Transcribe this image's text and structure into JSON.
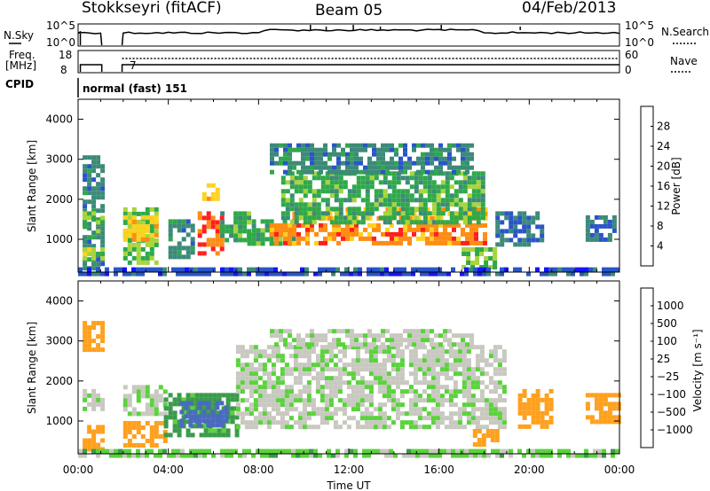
{
  "header": {
    "station": "Stokkseyri (fitACF)",
    "beam": "Beam 05",
    "date": "04/Feb/2013"
  },
  "nsky_panel": {
    "label": "N.Sky",
    "left_ticks": [
      "10^5",
      "10^0"
    ],
    "right_ticks": [
      "10^5",
      "10^0"
    ],
    "right_label": "N.Search"
  },
  "freq_panel": {
    "label_line1": "Freq.",
    "label_line2": "[MHz]",
    "left_ticks": [
      "18",
      "8"
    ],
    "right_ticks": [
      "60",
      "0"
    ],
    "right_label": "Nave",
    "marker": "7"
  },
  "cpid_panel": {
    "label": "CPID",
    "mode_text": "normal (fast) 151"
  },
  "time_axis": {
    "label": "Time UT",
    "tick_labels": [
      "00:00",
      "04:00",
      "08:00",
      "12:00",
      "16:00",
      "20:00",
      "00:00"
    ]
  },
  "colors": {
    "power_scale": [
      "#1414ff",
      "#2a55c8",
      "#3c8a78",
      "#2fa84a",
      "#a8d43c",
      "#ffd21e",
      "#ff8c14",
      "#ff1e1e"
    ],
    "velocity_scale": [
      "#1e28c8",
      "#4a6ac0",
      "#3a9a4a",
      "#5ad23c",
      "#c8c8c0",
      "#c8c8c0",
      "#ffa01e",
      "#ff7814",
      "#ff1e1e"
    ]
  },
  "chart_data": [
    {
      "type": "heatmap",
      "name": "power",
      "ylabel": "Slant Range [km]",
      "xlabel": "",
      "ylim": [
        180,
        4500
      ],
      "y_ticks": [
        "1000",
        "2000",
        "3000",
        "4000"
      ],
      "y_tick_values": [
        1000,
        2000,
        3000,
        4000
      ],
      "xlim_hours": [
        0,
        24
      ],
      "colorbar": {
        "label": "Power [dB]",
        "ticks": [
          "4",
          "8",
          "12",
          "16",
          "20",
          "24",
          "28"
        ],
        "tick_values": [
          4,
          8,
          12,
          16,
          20,
          24,
          28
        ],
        "range": [
          0,
          32
        ]
      },
      "regions": [
        {
          "t0": 0.2,
          "t1": 1.0,
          "r0": 300,
          "r1": 3100,
          "value": 10
        },
        {
          "t0": 0.2,
          "t1": 1.0,
          "r0": 500,
          "r1": 800,
          "value": 18
        },
        {
          "t0": 0.2,
          "t1": 1.0,
          "r0": 1200,
          "r1": 1700,
          "value": 16
        },
        {
          "t0": 2.0,
          "t1": 3.5,
          "r0": 400,
          "r1": 1800,
          "value": 16
        },
        {
          "t0": 2.0,
          "t1": 3.5,
          "r0": 1000,
          "r1": 1600,
          "value": 22
        },
        {
          "t0": 4.0,
          "t1": 5.0,
          "r0": 600,
          "r1": 1500,
          "value": 10
        },
        {
          "t0": 5.3,
          "t1": 6.3,
          "r0": 700,
          "r1": 1700,
          "value": 28
        },
        {
          "t0": 5.5,
          "t1": 6.2,
          "r0": 2000,
          "r1": 2400,
          "value": 22
        },
        {
          "t0": 6.3,
          "t1": 7.5,
          "r0": 1000,
          "r1": 1700,
          "value": 14
        },
        {
          "t0": 7.5,
          "t1": 9.5,
          "r0": 900,
          "r1": 1500,
          "value": 14
        },
        {
          "t0": 8.5,
          "t1": 18.0,
          "r0": 900,
          "r1": 1400,
          "value": 26
        },
        {
          "t0": 9.5,
          "t1": 18.0,
          "r0": 1500,
          "r1": 1800,
          "value": 24
        },
        {
          "t0": 9.0,
          "t1": 18.0,
          "r0": 1400,
          "r1": 2700,
          "value": 14
        },
        {
          "t0": 8.5,
          "t1": 17.5,
          "r0": 2700,
          "r1": 3400,
          "value": 10
        },
        {
          "t0": 17.0,
          "t1": 18.5,
          "r0": 300,
          "r1": 800,
          "value": 16
        },
        {
          "t0": 18.5,
          "t1": 20.5,
          "r0": 900,
          "r1": 1700,
          "value": 8
        },
        {
          "t0": 22.5,
          "t1": 23.8,
          "r0": 1000,
          "r1": 1600,
          "value": 8
        },
        {
          "t0": 0.0,
          "t1": 24.0,
          "r0": 180,
          "r1": 300,
          "value": 6
        }
      ]
    },
    {
      "type": "heatmap",
      "name": "velocity",
      "ylabel": "Slant Range [km]",
      "xlabel": "Time UT",
      "ylim": [
        180,
        4500
      ],
      "y_ticks": [
        "1000",
        "2000",
        "3000",
        "4000"
      ],
      "y_tick_values": [
        1000,
        2000,
        3000,
        4000
      ],
      "xlim_hours": [
        0,
        24
      ],
      "colorbar": {
        "label": "Velocity [m s⁻¹]",
        "ticks": [
          "1000",
          "500",
          "100",
          "25",
          "−25",
          "−100",
          "−500",
          "−1000"
        ],
        "tick_values": [
          1000,
          500,
          100,
          25,
          -25,
          -100,
          -500,
          -1000
        ]
      },
      "regions": [
        {
          "t0": 0.2,
          "t1": 1.0,
          "r0": 300,
          "r1": 900,
          "value": -300
        },
        {
          "t0": 0.2,
          "t1": 1.0,
          "r0": 2800,
          "r1": 3500,
          "value": -300
        },
        {
          "t0": 0.2,
          "t1": 1.0,
          "r0": 1300,
          "r1": 1800,
          "value": 0
        },
        {
          "t0": 2.0,
          "t1": 3.8,
          "r0": 1200,
          "r1": 1900,
          "value": 0
        },
        {
          "t0": 2.0,
          "t1": 3.8,
          "r0": 400,
          "r1": 1000,
          "value": -300
        },
        {
          "t0": 3.8,
          "t1": 7.0,
          "r0": 700,
          "r1": 1700,
          "value": 150
        },
        {
          "t0": 4.5,
          "t1": 6.5,
          "r0": 900,
          "r1": 1500,
          "value": 600
        },
        {
          "t0": 7.0,
          "t1": 19.0,
          "r0": 900,
          "r1": 2900,
          "value": 0
        },
        {
          "t0": 8.5,
          "t1": 17.5,
          "r0": 2900,
          "r1": 3300,
          "value": 0
        },
        {
          "t0": 17.5,
          "t1": 18.5,
          "r0": 400,
          "r1": 800,
          "value": -300
        },
        {
          "t0": 19.5,
          "t1": 21.0,
          "r0": 900,
          "r1": 1800,
          "value": -300
        },
        {
          "t0": 22.5,
          "t1": 23.9,
          "r0": 1000,
          "r1": 1700,
          "value": -300
        },
        {
          "t0": 0.0,
          "t1": 24.0,
          "r0": 180,
          "r1": 300,
          "value": 50
        }
      ]
    }
  ]
}
